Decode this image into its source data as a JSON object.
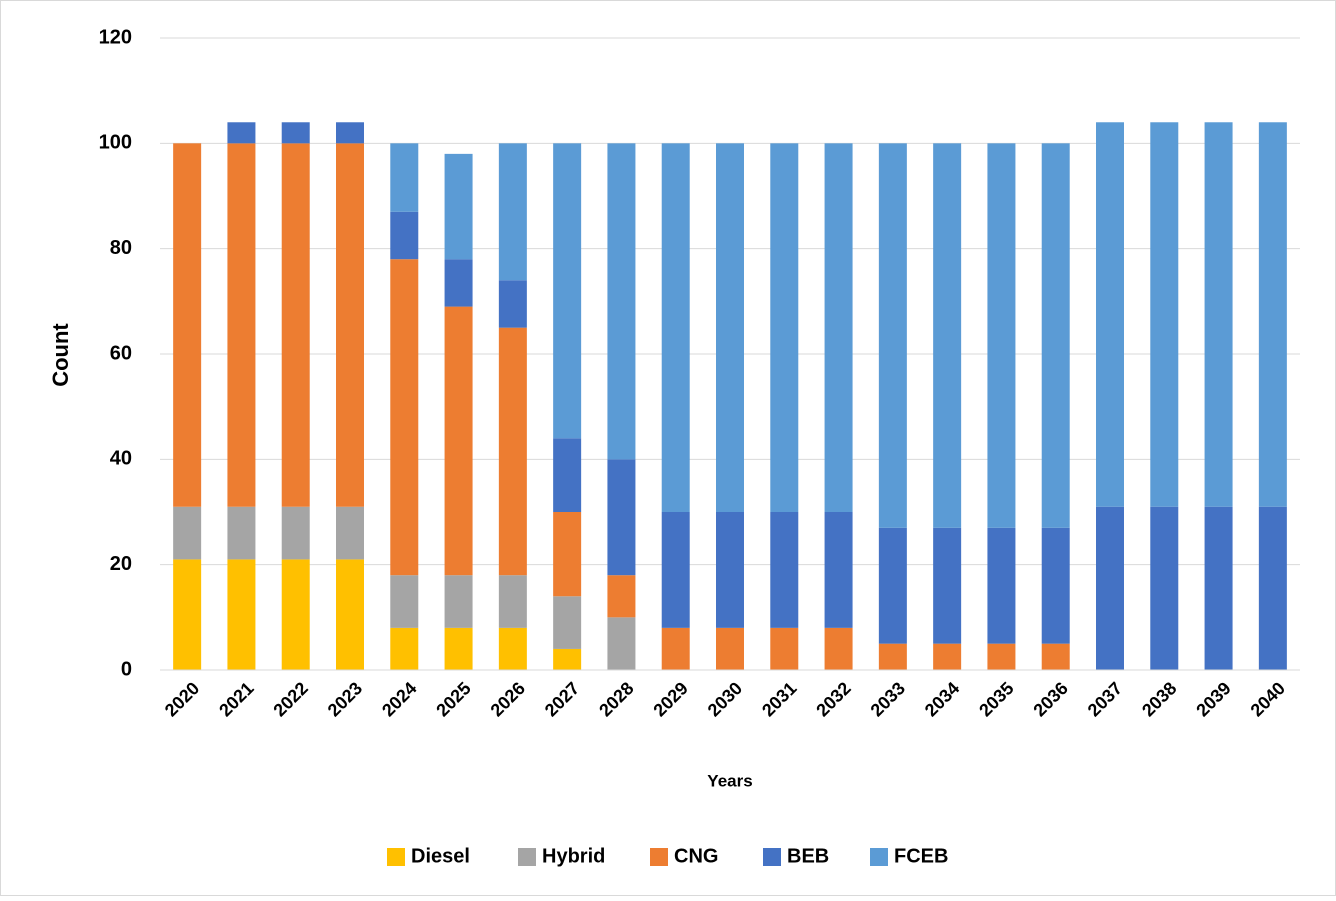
{
  "chart_data": {
    "type": "stacked_bar",
    "categories": [
      "2020",
      "2021",
      "2022",
      "2023",
      "2024",
      "2025",
      "2026",
      "2027",
      "2028",
      "2029",
      "2030",
      "2031",
      "2032",
      "2033",
      "2034",
      "2035",
      "2036",
      "2037",
      "2038",
      "2039",
      "2040"
    ],
    "series": [
      {
        "name": "Diesel",
        "color": "#ffc000",
        "values": [
          21,
          21,
          21,
          21,
          8,
          8,
          8,
          4,
          0,
          0,
          0,
          0,
          0,
          0,
          0,
          0,
          0,
          0,
          0,
          0,
          0
        ]
      },
      {
        "name": "Hybrid",
        "color": "#a5a5a5",
        "values": [
          10,
          10,
          10,
          10,
          10,
          10,
          10,
          10,
          10,
          0,
          0,
          0,
          0,
          0,
          0,
          0,
          0,
          0,
          0,
          0,
          0
        ]
      },
      {
        "name": "CNG",
        "color": "#ed7d31",
        "values": [
          69,
          69,
          69,
          69,
          60,
          51,
          47,
          16,
          8,
          8,
          8,
          8,
          8,
          5,
          5,
          5,
          5,
          0,
          0,
          0,
          0
        ]
      },
      {
        "name": "BEB",
        "color": "#4472c4",
        "values": [
          0,
          4,
          4,
          4,
          9,
          9,
          9,
          14,
          22,
          22,
          22,
          22,
          22,
          22,
          22,
          22,
          22,
          31,
          31,
          31,
          31
        ]
      },
      {
        "name": "FCEB",
        "color": "#5b9bd5",
        "values": [
          0,
          0,
          0,
          0,
          13,
          20,
          26,
          56,
          60,
          70,
          70,
          70,
          70,
          73,
          73,
          73,
          73,
          73,
          73,
          73,
          73
        ]
      }
    ],
    "ylabel": "Count",
    "xlabel": "Years",
    "ylim": [
      0,
      120
    ],
    "yticks": [
      0,
      20,
      40,
      60,
      80,
      100,
      120
    ],
    "grid": true,
    "legend": "bottom"
  }
}
